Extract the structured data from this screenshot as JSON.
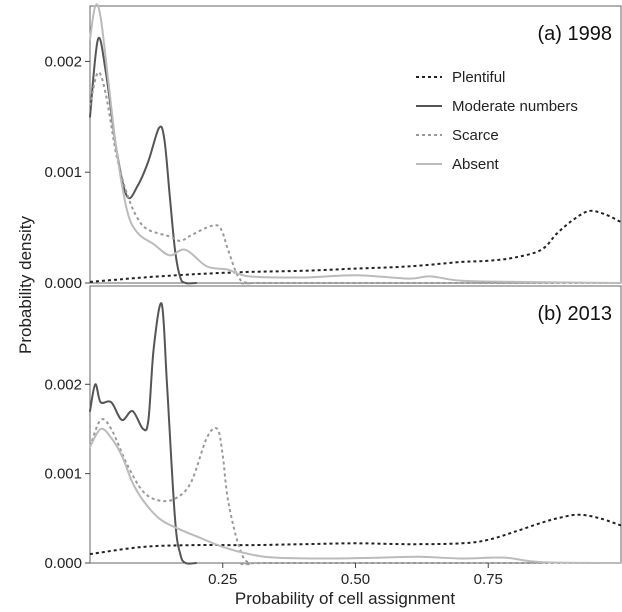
{
  "chart_data": {
    "type": "line",
    "ylabel": "Probability density",
    "xlabel": "Probability of cell assignment",
    "xlim": [
      0,
      1
    ],
    "x_ticks": [
      "0.25",
      "0.50",
      "0.75"
    ],
    "x_tick_values": [
      0.25,
      0.5,
      0.75
    ],
    "grid": false,
    "legend_position": "top-right",
    "legend": [
      {
        "name": "Plentiful",
        "color": "#222222",
        "dash": "dotted"
      },
      {
        "name": "Moderate numbers",
        "color": "#555555",
        "dash": "solid"
      },
      {
        "name": "Scarce",
        "color": "#999999",
        "dash": "dotted"
      },
      {
        "name": "Absent",
        "color": "#bbbbbb",
        "dash": "solid"
      }
    ],
    "panels": [
      {
        "title": "(a)  1998",
        "ylim": [
          0,
          0.0025
        ],
        "y_ticks": [
          "0.000",
          "0.001",
          "0.002"
        ],
        "y_tick_values": [
          0,
          0.001,
          0.002
        ],
        "series": [
          {
            "name": "Plentiful",
            "x": [
              0,
              0.05,
              0.1,
              0.2,
              0.3,
              0.4,
              0.5,
              0.6,
              0.7,
              0.75,
              0.8,
              0.85,
              0.88,
              0.91,
              0.94,
              0.97,
              1.0
            ],
            "y": [
              1e-05,
              3e-05,
              5e-05,
              8e-05,
              0.0001,
              0.00011,
              0.00013,
              0.00015,
              0.00019,
              0.0002,
              0.00023,
              0.0003,
              0.00045,
              0.00057,
              0.00065,
              0.00062,
              0.00055
            ]
          },
          {
            "name": "Moderate numbers",
            "x": [
              0,
              0.015,
              0.03,
              0.05,
              0.07,
              0.09,
              0.11,
              0.13,
              0.14,
              0.15,
              0.16,
              0.17,
              0.18,
              0.2
            ],
            "y": [
              0.0015,
              0.0022,
              0.0019,
              0.0012,
              0.00078,
              0.00088,
              0.0011,
              0.0014,
              0.0013,
              0.0008,
              0.0003,
              5e-05,
              0,
              0
            ]
          },
          {
            "name": "Scarce",
            "x": [
              0,
              0.015,
              0.03,
              0.05,
              0.07,
              0.09,
              0.11,
              0.15,
              0.17,
              0.19,
              0.22,
              0.24,
              0.25,
              0.26,
              0.28,
              0.3,
              0.35,
              1.0
            ],
            "y": [
              0.0016,
              0.0019,
              0.0017,
              0.00115,
              0.0008,
              0.00058,
              0.00048,
              0.00042,
              0.00038,
              0.00043,
              0.0005,
              0.00052,
              0.00045,
              0.0003,
              5e-05,
              0,
              0,
              0
            ]
          },
          {
            "name": "Absent",
            "x": [
              0,
              0.01,
              0.02,
              0.035,
              0.05,
              0.07,
              0.09,
              0.12,
              0.15,
              0.18,
              0.22,
              0.26,
              0.3,
              0.4,
              0.5,
              0.6,
              0.64,
              0.7,
              0.8,
              1.0
            ],
            "y": [
              0.0022,
              0.0025,
              0.0024,
              0.0018,
              0.0012,
              0.00065,
              0.00045,
              0.00035,
              0.00025,
              0.0003,
              0.00015,
              0.00012,
              6e-05,
              5e-05,
              7e-05,
              4e-05,
              6e-05,
              2e-05,
              1e-05,
              0
            ]
          }
        ]
      },
      {
        "title": "(b)  2013",
        "ylim": [
          0,
          0.0031
        ],
        "y_ticks": [
          "0.000",
          "0.001",
          "0.002"
        ],
        "y_tick_values": [
          0,
          0.001,
          0.002
        ],
        "series": [
          {
            "name": "Plentiful",
            "x": [
              0,
              0.1,
              0.2,
              0.3,
              0.4,
              0.5,
              0.6,
              0.7,
              0.75,
              0.8,
              0.85,
              0.88,
              0.92,
              0.96,
              1.0
            ],
            "y": [
              0.0001,
              0.00018,
              0.0002,
              0.0002,
              0.00021,
              0.00022,
              0.00021,
              0.00022,
              0.00026,
              0.00035,
              0.00045,
              0.0005,
              0.00054,
              0.0005,
              0.00042
            ]
          },
          {
            "name": "Moderate numbers",
            "x": [
              0,
              0.01,
              0.02,
              0.04,
              0.06,
              0.08,
              0.1,
              0.11,
              0.12,
              0.135,
              0.145,
              0.16,
              0.17,
              0.18,
              0.2
            ],
            "y": [
              0.0017,
              0.002,
              0.0018,
              0.0018,
              0.0016,
              0.0017,
              0.0015,
              0.0016,
              0.0024,
              0.0029,
              0.002,
              0.0005,
              0.0001,
              0,
              0
            ]
          },
          {
            "name": "Scarce",
            "x": [
              0,
              0.02,
              0.04,
              0.07,
              0.1,
              0.13,
              0.16,
              0.19,
              0.22,
              0.24,
              0.25,
              0.26,
              0.28,
              0.3,
              0.35,
              1.0
            ],
            "y": [
              0.0013,
              0.0016,
              0.0015,
              0.0011,
              0.0008,
              0.0007,
              0.00072,
              0.0009,
              0.0014,
              0.0015,
              0.0012,
              0.0007,
              0.0002,
              0,
              0,
              0
            ]
          },
          {
            "name": "Absent",
            "x": [
              0,
              0.02,
              0.04,
              0.06,
              0.08,
              0.1,
              0.13,
              0.16,
              0.2,
              0.25,
              0.3,
              0.35,
              0.45,
              0.55,
              0.62,
              0.7,
              0.78,
              0.85,
              1.0
            ],
            "y": [
              0.0013,
              0.0015,
              0.0014,
              0.0012,
              0.0009,
              0.0007,
              0.0005,
              0.0004,
              0.0003,
              0.00018,
              0.0001,
              6e-05,
              5e-05,
              6e-05,
              7e-05,
              5e-05,
              6e-05,
              1e-05,
              0
            ]
          }
        ]
      }
    ]
  }
}
